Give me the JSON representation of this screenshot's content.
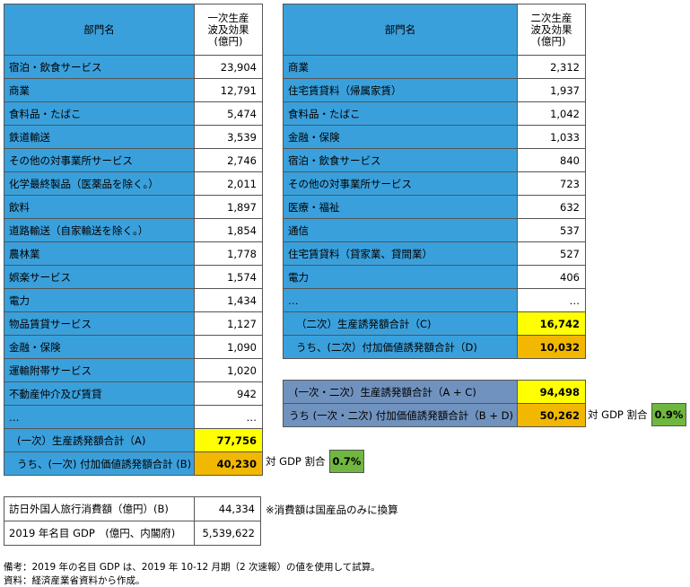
{
  "left_table": {
    "header_name": "部門名",
    "header_value_lines": [
      "一次生産",
      "波及効果",
      "(億円)"
    ],
    "rows": [
      {
        "name": "宿泊・飲食サービス",
        "value": "23,904"
      },
      {
        "name": "商業",
        "value": "12,791"
      },
      {
        "name": "食料品・たばこ",
        "value": "5,474"
      },
      {
        "name": "鉄道輸送",
        "value": "3,539"
      },
      {
        "name": "その他の対事業所サービス",
        "value": "2,746"
      },
      {
        "name": "化学最終製品（医薬品を除く。）",
        "value": "2,011"
      },
      {
        "name": "飲料",
        "value": "1,897"
      },
      {
        "name": "道路輸送（自家輸送を除く。）",
        "value": "1,854"
      },
      {
        "name": "農林業",
        "value": "1,778"
      },
      {
        "name": "娯楽サービス",
        "value": "1,574"
      },
      {
        "name": "電力",
        "value": "1,434"
      },
      {
        "name": "物品賃貸サービス",
        "value": "1,127"
      },
      {
        "name": "金融・保険",
        "value": "1,090"
      },
      {
        "name": "運輸附帯サービス",
        "value": "1,020"
      },
      {
        "name": "不動産仲介及び賃貸",
        "value": "942"
      },
      {
        "name": "…",
        "value": "…"
      }
    ],
    "total_label": "(一次）生産誘発額合計（A)",
    "total_value": "77,756",
    "va_label": "うち、(一次) 付加価値誘発額合計 (B)",
    "va_value": "40,230",
    "ratio_label": "対 GDP 割合",
    "ratio_value": "0.7%"
  },
  "right_table": {
    "header_name": "部門名",
    "header_value_lines": [
      "二次生産",
      "波及効果",
      "(億円)"
    ],
    "rows": [
      {
        "name": "商業",
        "value": "2,312"
      },
      {
        "name": "住宅賃貸料（帰属家賃）",
        "value": "1,937"
      },
      {
        "name": "食料品・たばこ",
        "value": "1,042"
      },
      {
        "name": "金融・保険",
        "value": "1,033"
      },
      {
        "name": "宿泊・飲食サービス",
        "value": "840"
      },
      {
        "name": "その他の対事業所サービス",
        "value": "723"
      },
      {
        "name": "医療・福祉",
        "value": "632"
      },
      {
        "name": "通信",
        "value": "537"
      },
      {
        "name": "住宅賃貸料（貸家業、貸間業）",
        "value": "527"
      },
      {
        "name": "電力",
        "value": "406"
      },
      {
        "name": "…",
        "value": "…"
      }
    ],
    "total_label": "（二次）生産誘発額合計（C)",
    "total_value": "16,742",
    "va_label": "うち、(二次）付加価値誘発額合計（D)",
    "va_value": "10,032"
  },
  "combined_table": {
    "total_label": "(一次・二次）生産誘発額合計（A + C)",
    "total_value": "94,498",
    "va_label": "うち (一次・二次) 付加価値誘発額合計（B + D)",
    "va_value": "50,262",
    "ratio_label": "対 GDP 割合",
    "ratio_value": "0.9%"
  },
  "bottom_table": {
    "rows": [
      {
        "label": "訪日外国人旅行消費額（億円）(B)",
        "value": "44,334"
      },
      {
        "label": "2019 年名目 GDP　(億円、内閣府)",
        "value": "5,539,622"
      }
    ],
    "note": "※消費額は国産品のみに換算"
  },
  "footnotes": {
    "line1": "備考：2019 年の名目 GDP は、2019 年 10-12 月期（2 次速報）の値を使用して試算。",
    "line2": "資料：経済産業省資料から作成。"
  },
  "colors": {
    "row_blue": "#3aa0dc",
    "total_yellow": "#ffff00",
    "value_added_gold": "#f2b700",
    "combined_slate": "#7092be",
    "ratio_green": "#70b740"
  }
}
